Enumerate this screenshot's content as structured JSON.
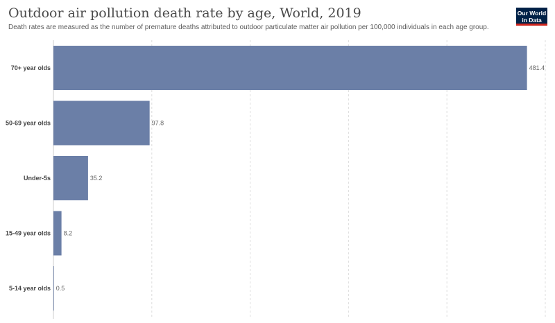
{
  "header": {
    "title": "Outdoor air pollution death rate by age, World, 2019",
    "subtitle": "Death rates are measured as the number of premature deaths attributed to outdoor particulate matter air pollution per 100,000 individuals in each age group."
  },
  "logo": {
    "line1": "Our World",
    "line2": "in Data",
    "bg_color": "#002147",
    "accent_color": "#ce261e"
  },
  "chart_data": {
    "type": "bar",
    "orientation": "horizontal",
    "categories": [
      "70+ year olds",
      "50-69 year olds",
      "Under-5s",
      "15-49 year olds",
      "5-14 year olds"
    ],
    "values": [
      481.4,
      97.8,
      35.2,
      8.2,
      0.5
    ],
    "value_labels": [
      "481.4",
      "97.8",
      "35.2",
      "8.2",
      "0.5"
    ],
    "xlim": [
      0,
      500
    ],
    "grid": "vertical dashed",
    "bar_color": "#6b7fa7"
  }
}
